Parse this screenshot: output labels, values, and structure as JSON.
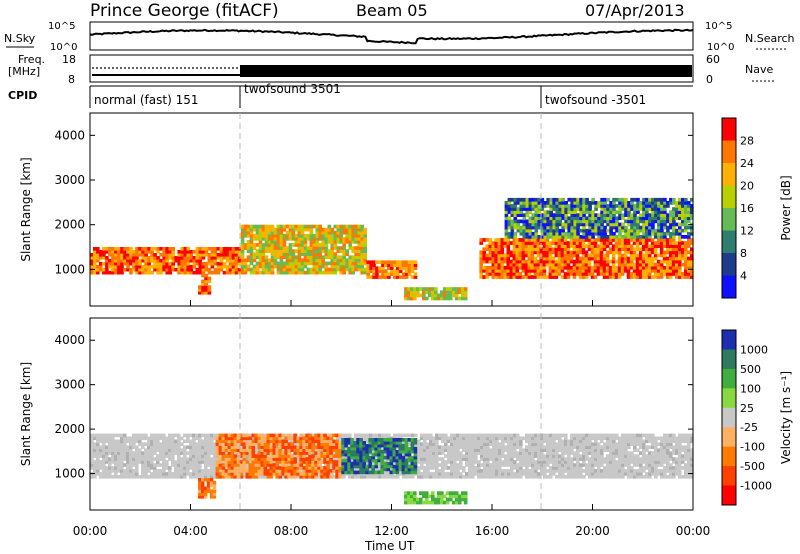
{
  "header": {
    "station": "Prince George (fitACF)",
    "beam": "Beam 05",
    "date": "07/Apr/2013"
  },
  "noise_panel": {
    "left_label": "N.Sky",
    "right_label": "N.Search",
    "left_ticks": [
      "10^5",
      "10^0"
    ],
    "right_ticks": [
      "10^5",
      "10^0"
    ]
  },
  "freq_panel": {
    "label_line1": "Freq.",
    "label_line2": "[MHz]",
    "left_ticks": [
      "18",
      "8"
    ],
    "right_ticks": [
      "60",
      "0"
    ],
    "right_label": "Nave"
  },
  "cpid_panel": {
    "label": "CPID",
    "segments": [
      {
        "start_hour": 0,
        "text": "normal (fast) 151"
      },
      {
        "start_hour": 6,
        "text": "twofsound 3501"
      },
      {
        "start_hour": 18,
        "text": "twofsound -3501"
      }
    ]
  },
  "chart_data": [
    {
      "type": "heatmap",
      "name": "power",
      "ylabel": "Slant Range [km]",
      "xlabel": "",
      "xlim": [
        0,
        24
      ],
      "ylim": [
        180,
        4500
      ],
      "yticks": [
        1000,
        2000,
        3000,
        4000
      ],
      "colorbar": {
        "label": "Power [dB]",
        "ticks": [
          "28",
          "24",
          "20",
          "16",
          "12",
          "8",
          "4"
        ],
        "colors": [
          "#ff0000",
          "#ff7700",
          "#ffb000",
          "#b8d000",
          "#66bb55",
          "#2e7d6e",
          "#1e3c8c",
          "#1010ff"
        ]
      },
      "features": [
        {
          "t0": 0.0,
          "t1": 6.0,
          "r0": 900,
          "r1": 1500,
          "level": "high"
        },
        {
          "t0": 4.3,
          "t1": 4.8,
          "r0": 450,
          "r1": 900,
          "level": "high"
        },
        {
          "t0": 6.0,
          "t1": 11.0,
          "r0": 900,
          "r1": 2000,
          "level": "medium"
        },
        {
          "t0": 11.0,
          "t1": 13.0,
          "r0": 800,
          "r1": 1200,
          "level": "high"
        },
        {
          "t0": 12.5,
          "t1": 15.0,
          "r0": 320,
          "r1": 600,
          "level": "medium"
        },
        {
          "t0": 15.5,
          "t1": 24.0,
          "r0": 800,
          "r1": 1700,
          "level": "high"
        },
        {
          "t0": 16.5,
          "t1": 24.0,
          "r0": 1700,
          "r1": 2600,
          "level": "low"
        }
      ]
    },
    {
      "type": "heatmap",
      "name": "velocity",
      "ylabel": "Slant Range [km]",
      "xlabel": "Time UT",
      "xlim": [
        0,
        24
      ],
      "ylim": [
        180,
        4500
      ],
      "yticks": [
        1000,
        2000,
        3000,
        4000
      ],
      "xticks": [
        "00:00",
        "04:00",
        "08:00",
        "12:00",
        "16:00",
        "20:00",
        "00:00"
      ],
      "colorbar": {
        "label": "Velocity [m s⁻¹]",
        "ticks": [
          "1000",
          "500",
          "100",
          "25",
          "-25",
          "-100",
          "-500",
          "-1000"
        ],
        "colors": [
          "#1c2fb0",
          "#2c7a60",
          "#3fae3f",
          "#88d840",
          "#c8c8c8",
          "#ffb060",
          "#ff7a00",
          "#ff4000",
          "#ff0000"
        ]
      },
      "features": [
        {
          "t0": 0.0,
          "t1": 24.0,
          "r0": 900,
          "r1": 1900,
          "level": "ground"
        },
        {
          "t0": 4.3,
          "t1": 5.0,
          "r0": 450,
          "r1": 900,
          "level": "negative"
        },
        {
          "t0": 5.0,
          "t1": 10.0,
          "r0": 900,
          "r1": 1900,
          "level": "negative"
        },
        {
          "t0": 10.0,
          "t1": 13.0,
          "r0": 1000,
          "r1": 1800,
          "level": "positive"
        },
        {
          "t0": 12.5,
          "t1": 15.0,
          "r0": 320,
          "r1": 600,
          "level": "small-positive"
        }
      ]
    }
  ]
}
